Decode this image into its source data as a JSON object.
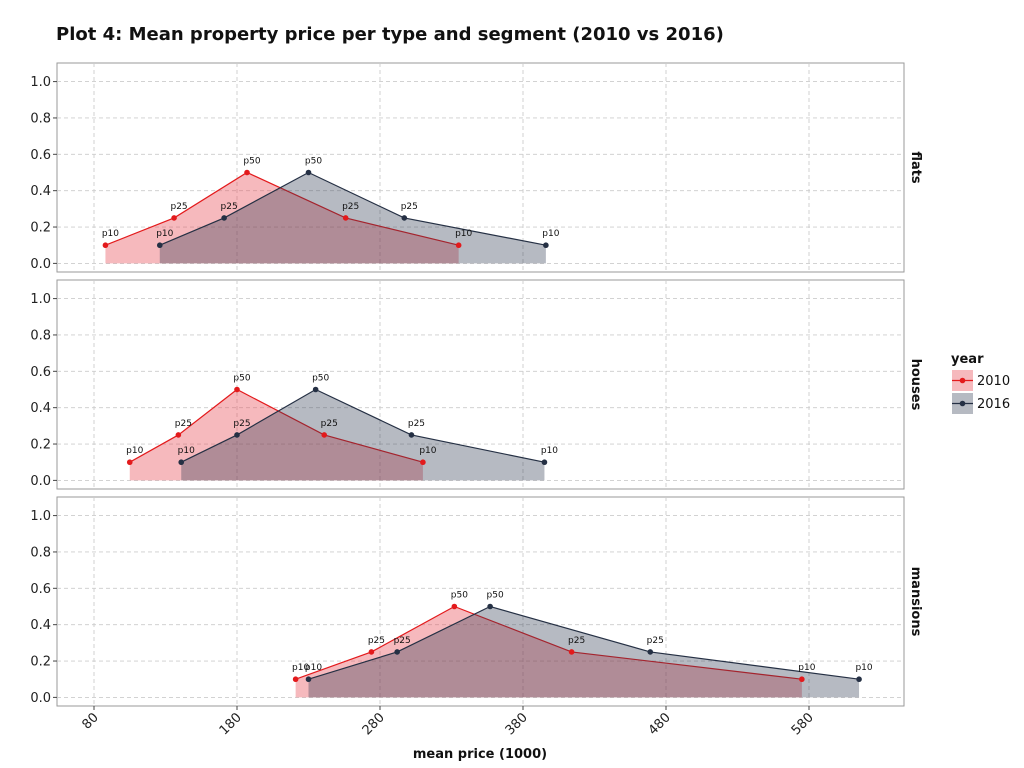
{
  "chart_data": {
    "type": "area",
    "title": "Plot 4: Mean property price per type and segment (2010 vs 2016)",
    "xlabel": "mean price (1000)",
    "ylabel": "",
    "xlim": [
      55,
      610
    ],
    "ylim": [
      -0.05,
      1.05
    ],
    "x_ticks": [
      80,
      180,
      280,
      380,
      480,
      580
    ],
    "y_ticks": [
      "0.0",
      "0.2",
      "0.4",
      "0.6",
      "0.8",
      "1.0"
    ],
    "grid": true,
    "legend": {
      "title": "year",
      "position": "right"
    },
    "colors": {
      "2010": "#e31a1c",
      "2016": "#253044"
    },
    "panels": [
      {
        "label": "flats",
        "series": [
          {
            "name": "2010",
            "points": [
              {
                "x": 88,
                "y": 0.1,
                "label": "p10"
              },
              {
                "x": 136,
                "y": 0.25,
                "label": "p25"
              },
              {
                "x": 187,
                "y": 0.5,
                "label": "p50"
              },
              {
                "x": 256,
                "y": 0.25,
                "label": "p25"
              },
              {
                "x": 335,
                "y": 0.1,
                "label": "p10"
              }
            ]
          },
          {
            "name": "2016",
            "points": [
              {
                "x": 126,
                "y": 0.1,
                "label": "p10"
              },
              {
                "x": 171,
                "y": 0.25,
                "label": "p25"
              },
              {
                "x": 230,
                "y": 0.5,
                "label": "p50"
              },
              {
                "x": 297,
                "y": 0.25,
                "label": "p25"
              },
              {
                "x": 396,
                "y": 0.1,
                "label": "p10"
              }
            ]
          }
        ]
      },
      {
        "label": "houses",
        "series": [
          {
            "name": "2010",
            "points": [
              {
                "x": 105,
                "y": 0.1,
                "label": "p10"
              },
              {
                "x": 139,
                "y": 0.25,
                "label": "p25"
              },
              {
                "x": 180,
                "y": 0.5,
                "label": "p50"
              },
              {
                "x": 241,
                "y": 0.25,
                "label": "p25"
              },
              {
                "x": 310,
                "y": 0.1,
                "label": "p10"
              }
            ]
          },
          {
            "name": "2016",
            "points": [
              {
                "x": 141,
                "y": 0.1,
                "label": "p10"
              },
              {
                "x": 180,
                "y": 0.25,
                "label": "p25"
              },
              {
                "x": 235,
                "y": 0.5,
                "label": "p50"
              },
              {
                "x": 302,
                "y": 0.25,
                "label": "p25"
              },
              {
                "x": 395,
                "y": 0.1,
                "label": "p10"
              }
            ]
          }
        ]
      },
      {
        "label": "mansions",
        "series": [
          {
            "name": "2010",
            "points": [
              {
                "x": 221,
                "y": 0.1,
                "label": "p10"
              },
              {
                "x": 274,
                "y": 0.25,
                "label": "p25"
              },
              {
                "x": 332,
                "y": 0.5,
                "label": "p50"
              },
              {
                "x": 414,
                "y": 0.25,
                "label": "p25"
              },
              {
                "x": 575,
                "y": 0.1,
                "label": "p10"
              }
            ]
          },
          {
            "name": "2016",
            "points": [
              {
                "x": 230,
                "y": 0.1,
                "label": "p10"
              },
              {
                "x": 292,
                "y": 0.25,
                "label": "p25"
              },
              {
                "x": 357,
                "y": 0.5,
                "label": "p50"
              },
              {
                "x": 469,
                "y": 0.25,
                "label": "p25"
              },
              {
                "x": 615,
                "y": 0.1,
                "label": "p10"
              }
            ]
          }
        ]
      }
    ]
  }
}
